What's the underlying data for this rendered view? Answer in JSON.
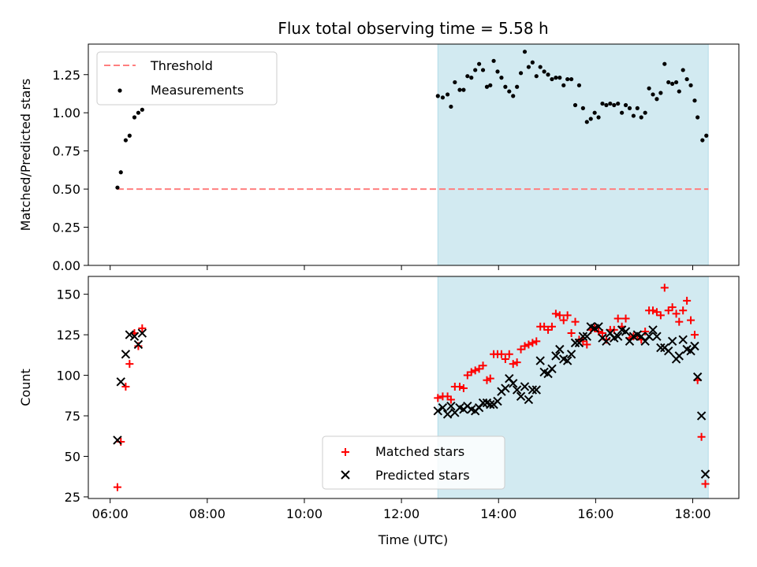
{
  "chart_data": [
    {
      "type": "scatter",
      "title": "Flux total observing time = 5.58 h",
      "xlabel": "",
      "ylabel": "Matched/Predicted stars",
      "x_unit": "hours (UTC)",
      "xlim": [
        5.55,
        18.95
      ],
      "ylim": [
        0,
        1.45
      ],
      "yticks": [
        "0.00",
        "0.25",
        "0.50",
        "0.75",
        "1.00",
        "1.25"
      ],
      "observing_window": {
        "start": 12.75,
        "end": 18.32,
        "color": "#add8e6"
      },
      "threshold": {
        "name": "Threshold",
        "value": 0.5,
        "x_range": [
          6.15,
          18.32
        ],
        "color": "#ff7f7f",
        "style": "dashed"
      },
      "series": [
        {
          "name": "Measurements",
          "color": "#000000",
          "marker": "dot",
          "points": [
            [
              6.15,
              0.51
            ],
            [
              6.22,
              0.61
            ],
            [
              6.32,
              0.82
            ],
            [
              6.4,
              0.85
            ],
            [
              6.5,
              0.97
            ],
            [
              6.58,
              1.0
            ],
            [
              6.66,
              1.02
            ],
            [
              12.75,
              1.11
            ],
            [
              12.85,
              1.1
            ],
            [
              12.95,
              1.12
            ],
            [
              13.02,
              1.04
            ],
            [
              13.1,
              1.2
            ],
            [
              13.2,
              1.15
            ],
            [
              13.28,
              1.15
            ],
            [
              13.36,
              1.24
            ],
            [
              13.44,
              1.23
            ],
            [
              13.52,
              1.28
            ],
            [
              13.6,
              1.32
            ],
            [
              13.68,
              1.28
            ],
            [
              13.76,
              1.17
            ],
            [
              13.83,
              1.18
            ],
            [
              13.9,
              1.34
            ],
            [
              13.98,
              1.27
            ],
            [
              14.06,
              1.23
            ],
            [
              14.14,
              1.17
            ],
            [
              14.22,
              1.14
            ],
            [
              14.3,
              1.11
            ],
            [
              14.38,
              1.17
            ],
            [
              14.46,
              1.26
            ],
            [
              14.54,
              1.4
            ],
            [
              14.62,
              1.3
            ],
            [
              14.7,
              1.33
            ],
            [
              14.78,
              1.24
            ],
            [
              14.86,
              1.3
            ],
            [
              14.94,
              1.27
            ],
            [
              15.02,
              1.25
            ],
            [
              15.1,
              1.22
            ],
            [
              15.18,
              1.23
            ],
            [
              15.26,
              1.23
            ],
            [
              15.34,
              1.18
            ],
            [
              15.42,
              1.22
            ],
            [
              15.5,
              1.22
            ],
            [
              15.58,
              1.05
            ],
            [
              15.66,
              1.18
            ],
            [
              15.74,
              1.03
            ],
            [
              15.82,
              0.94
            ],
            [
              15.9,
              0.96
            ],
            [
              15.98,
              1.0
            ],
            [
              16.06,
              0.97
            ],
            [
              16.14,
              1.06
            ],
            [
              16.22,
              1.05
            ],
            [
              16.3,
              1.06
            ],
            [
              16.38,
              1.05
            ],
            [
              16.46,
              1.06
            ],
            [
              16.54,
              1.0
            ],
            [
              16.62,
              1.05
            ],
            [
              16.7,
              1.03
            ],
            [
              16.78,
              0.98
            ],
            [
              16.86,
              1.03
            ],
            [
              16.94,
              0.97
            ],
            [
              17.02,
              1.0
            ],
            [
              17.1,
              1.16
            ],
            [
              17.18,
              1.12
            ],
            [
              17.26,
              1.09
            ],
            [
              17.34,
              1.13
            ],
            [
              17.42,
              1.32
            ],
            [
              17.5,
              1.2
            ],
            [
              17.58,
              1.19
            ],
            [
              17.66,
              1.2
            ],
            [
              17.72,
              1.14
            ],
            [
              17.8,
              1.28
            ],
            [
              17.88,
              1.22
            ],
            [
              17.96,
              1.18
            ],
            [
              18.04,
              1.08
            ],
            [
              18.1,
              0.97
            ],
            [
              18.2,
              0.82
            ],
            [
              18.28,
              0.85
            ]
          ]
        }
      ],
      "legend": [
        "Threshold",
        "Measurements"
      ],
      "legend_placement": "top-left"
    },
    {
      "type": "scatter",
      "xlabel": "Time (UTC)",
      "ylabel": "Count",
      "x_unit": "hours (UTC)",
      "xlim": [
        5.55,
        18.95
      ],
      "ylim": [
        24,
        161
      ],
      "xticks": [
        "06:00",
        "08:00",
        "10:00",
        "12:00",
        "14:00",
        "16:00",
        "18:00"
      ],
      "xtick_values": [
        6,
        8,
        10,
        12,
        14,
        16,
        18
      ],
      "yticks": [
        "25",
        "50",
        "75",
        "100",
        "125",
        "150"
      ],
      "observing_window": {
        "start": 12.75,
        "end": 18.32,
        "color": "#add8e6"
      },
      "series": [
        {
          "name": "Matched stars",
          "color": "#ff0000",
          "marker": "plus",
          "points": [
            [
              6.15,
              31
            ],
            [
              6.22,
              59
            ],
            [
              6.32,
              93
            ],
            [
              6.4,
              107
            ],
            [
              6.5,
              126
            ],
            [
              6.58,
              118
            ],
            [
              6.66,
              129
            ],
            [
              12.75,
              86
            ],
            [
              12.85,
              87
            ],
            [
              12.95,
              87
            ],
            [
              13.02,
              85
            ],
            [
              13.1,
              93
            ],
            [
              13.2,
              93
            ],
            [
              13.28,
              92
            ],
            [
              13.36,
              100
            ],
            [
              13.44,
              102
            ],
            [
              13.52,
              103
            ],
            [
              13.6,
              104
            ],
            [
              13.68,
              106
            ],
            [
              13.76,
              97
            ],
            [
              13.83,
              98
            ],
            [
              13.9,
              113
            ],
            [
              13.98,
              113
            ],
            [
              14.06,
              113
            ],
            [
              14.14,
              110
            ],
            [
              14.22,
              113
            ],
            [
              14.3,
              107
            ],
            [
              14.38,
              108
            ],
            [
              14.46,
              116
            ],
            [
              14.54,
              118
            ],
            [
              14.62,
              119
            ],
            [
              14.7,
              120
            ],
            [
              14.78,
              121
            ],
            [
              14.86,
              130
            ],
            [
              14.94,
              130
            ],
            [
              15.02,
              128
            ],
            [
              15.1,
              130
            ],
            [
              15.18,
              138
            ],
            [
              15.26,
              137
            ],
            [
              15.34,
              134
            ],
            [
              15.42,
              137
            ],
            [
              15.5,
              126
            ],
            [
              15.58,
              133
            ],
            [
              15.66,
              122
            ],
            [
              15.74,
              121
            ],
            [
              15.82,
              119
            ],
            [
              15.9,
              128
            ],
            [
              15.98,
              129
            ],
            [
              16.06,
              127
            ],
            [
              16.14,
              126
            ],
            [
              16.22,
              122
            ],
            [
              16.3,
              128
            ],
            [
              16.38,
              128
            ],
            [
              16.46,
              135
            ],
            [
              16.54,
              130
            ],
            [
              16.62,
              135
            ],
            [
              16.7,
              123
            ],
            [
              16.78,
              124
            ],
            [
              16.86,
              124
            ],
            [
              16.94,
              122
            ],
            [
              17.02,
              127
            ],
            [
              17.1,
              140
            ],
            [
              17.18,
              140
            ],
            [
              17.26,
              139
            ],
            [
              17.34,
              137
            ],
            [
              17.42,
              154
            ],
            [
              17.5,
              140
            ],
            [
              17.58,
              142
            ],
            [
              17.66,
              138
            ],
            [
              17.72,
              133
            ],
            [
              17.8,
              140
            ],
            [
              17.88,
              146
            ],
            [
              17.96,
              134
            ],
            [
              18.04,
              125
            ],
            [
              18.1,
              97
            ],
            [
              18.18,
              62
            ],
            [
              18.26,
              33
            ]
          ]
        },
        {
          "name": "Predicted stars",
          "color": "#000000",
          "marker": "x",
          "points": [
            [
              6.15,
              60
            ],
            [
              6.22,
              96
            ],
            [
              6.32,
              113
            ],
            [
              6.4,
              125
            ],
            [
              6.5,
              124
            ],
            [
              6.58,
              119
            ],
            [
              6.66,
              126
            ],
            [
              12.75,
              78
            ],
            [
              12.85,
              80
            ],
            [
              12.95,
              76
            ],
            [
              13.02,
              81
            ],
            [
              13.1,
              77
            ],
            [
              13.2,
              80
            ],
            [
              13.28,
              79
            ],
            [
              13.36,
              81
            ],
            [
              13.44,
              79
            ],
            [
              13.52,
              78
            ],
            [
              13.6,
              80
            ],
            [
              13.68,
              83
            ],
            [
              13.76,
              83
            ],
            [
              13.83,
              82
            ],
            [
              13.9,
              82
            ],
            [
              13.98,
              84
            ],
            [
              14.06,
              90
            ],
            [
              14.14,
              92
            ],
            [
              14.22,
              98
            ],
            [
              14.3,
              95
            ],
            [
              14.38,
              91
            ],
            [
              14.46,
              87
            ],
            [
              14.54,
              93
            ],
            [
              14.62,
              85
            ],
            [
              14.7,
              91
            ],
            [
              14.78,
              91
            ],
            [
              14.86,
              109
            ],
            [
              14.94,
              102
            ],
            [
              15.02,
              101
            ],
            [
              15.1,
              104
            ],
            [
              15.18,
              112
            ],
            [
              15.26,
              116
            ],
            [
              15.34,
              110
            ],
            [
              15.42,
              109
            ],
            [
              15.5,
              113
            ],
            [
              15.58,
              120
            ],
            [
              15.66,
              120
            ],
            [
              15.74,
              124
            ],
            [
              15.82,
              124
            ],
            [
              15.9,
              130
            ],
            [
              15.98,
              129
            ],
            [
              16.06,
              130
            ],
            [
              16.14,
              123
            ],
            [
              16.22,
              121
            ],
            [
              16.3,
              126
            ],
            [
              16.38,
              123
            ],
            [
              16.46,
              124
            ],
            [
              16.54,
              128
            ],
            [
              16.62,
              127
            ],
            [
              16.7,
              121
            ],
            [
              16.78,
              124
            ],
            [
              16.86,
              125
            ],
            [
              16.94,
              124
            ],
            [
              17.02,
              121
            ],
            [
              17.1,
              124
            ],
            [
              17.18,
              128
            ],
            [
              17.26,
              124
            ],
            [
              17.34,
              117
            ],
            [
              17.42,
              117
            ],
            [
              17.5,
              115
            ],
            [
              17.58,
              121
            ],
            [
              17.66,
              110
            ],
            [
              17.72,
              112
            ],
            [
              17.8,
              122
            ],
            [
              17.88,
              116
            ],
            [
              17.96,
              115
            ],
            [
              18.04,
              118
            ],
            [
              18.1,
              99
            ],
            [
              18.18,
              75
            ],
            [
              18.26,
              39
            ]
          ]
        }
      ],
      "legend": [
        "Matched stars",
        "Predicted stars"
      ],
      "legend_placement": "lower-center"
    }
  ]
}
